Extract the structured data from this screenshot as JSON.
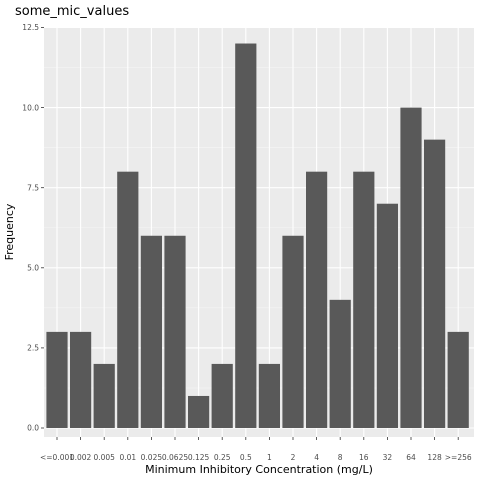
{
  "chart_data": {
    "type": "bar",
    "title": "some_mic_values",
    "xlabel": "Minimum Inhibitory Concentration (mg/L)",
    "ylabel": "Frequency",
    "categories": [
      "<=0.001",
      "0.002",
      "0.005",
      "0.01",
      "0.025",
      "0.0625",
      "0.125",
      "0.25",
      "0.5",
      "1",
      "2",
      "4",
      "8",
      "16",
      "32",
      "64",
      "128",
      ">=256"
    ],
    "values": [
      3,
      3,
      2,
      8,
      6,
      6,
      1,
      2,
      12,
      2,
      6,
      8,
      4,
      8,
      7,
      10,
      9,
      3
    ],
    "yticks": [
      "0.0",
      "2.5",
      "5.0",
      "7.5",
      "10.0",
      "12.5"
    ],
    "ylim": [
      0,
      12.5
    ],
    "grid": true,
    "colors": {
      "bar": "#595959",
      "panel": "#ebebeb",
      "grid_major": "#ffffff",
      "grid_minor": "#f5f5f5"
    }
  }
}
